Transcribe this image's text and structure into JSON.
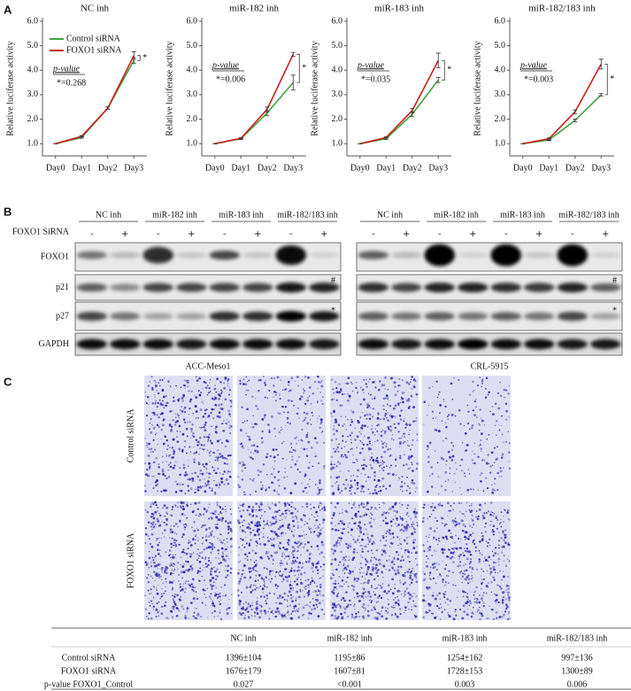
{
  "panel_labels": [
    "A",
    "B",
    "C"
  ],
  "chart_data": [
    {
      "type": "line",
      "title": "NC inh",
      "ylabel": "Relative luciferase activity",
      "categories": [
        "Day0",
        "Day1",
        "Day2",
        "Day3"
      ],
      "series": [
        {
          "name": "Control siRNA",
          "color": "#3da33d",
          "values": [
            1.0,
            1.25,
            2.45,
            4.4
          ],
          "errors": [
            0.0,
            0.03,
            0.05,
            0.12
          ]
        },
        {
          "name": "FOXO1 siRNA",
          "color": "#cc1f1f",
          "values": [
            1.0,
            1.3,
            2.45,
            4.6
          ],
          "errors": [
            0.0,
            0.03,
            0.05,
            0.15
          ]
        }
      ],
      "ylim": [
        0.5,
        6.0
      ],
      "yticks": [
        {
          "value": 1,
          "label": "1.0"
        },
        {
          "value": 2,
          "label": "2.0"
        },
        {
          "value": 3,
          "label": "3.0"
        },
        {
          "value": 4,
          "label": "4.0"
        },
        {
          "value": 5,
          "label": "5.0"
        },
        {
          "value": 6,
          "label": "6.0"
        }
      ],
      "legend": true,
      "pvalue_label": "p-value",
      "pvalue_text": "*=0.268",
      "star": "*"
    },
    {
      "type": "line",
      "title": "miR-182 inh",
      "ylabel": "Relative luciferase activity",
      "categories": [
        "Day0",
        "Day1",
        "Day2",
        "Day3"
      ],
      "series": [
        {
          "name": "Control siRNA",
          "color": "#3da33d",
          "values": [
            1.0,
            1.2,
            2.25,
            3.5
          ],
          "errors": [
            0.0,
            0.03,
            0.1,
            0.3
          ]
        },
        {
          "name": "FOXO1 siRNA",
          "color": "#cc1f1f",
          "values": [
            1.0,
            1.22,
            2.4,
            4.65
          ],
          "errors": [
            0.0,
            0.03,
            0.1,
            0.08
          ]
        }
      ],
      "ylim": [
        0.5,
        6.0
      ],
      "yticks": [
        {
          "value": 1,
          "label": "1.0"
        },
        {
          "value": 2,
          "label": "2.0"
        },
        {
          "value": 3,
          "label": "3.0"
        },
        {
          "value": 4,
          "label": "4.0"
        },
        {
          "value": 5,
          "label": "5.0"
        },
        {
          "value": 6,
          "label": "6.0"
        }
      ],
      "legend": false,
      "pvalue_label": "p-value",
      "pvalue_text": "*=0.006",
      "star": "*"
    },
    {
      "type": "line",
      "title": "miR-183 inh",
      "ylabel": "Relative luciferase activity",
      "categories": [
        "Day0",
        "Day1",
        "Day2",
        "Day3"
      ],
      "series": [
        {
          "name": "Control siRNA",
          "color": "#3da33d",
          "values": [
            1.0,
            1.2,
            2.2,
            3.6
          ],
          "errors": [
            0.0,
            0.03,
            0.1,
            0.1
          ]
        },
        {
          "name": "FOXO1 siRNA",
          "color": "#cc1f1f",
          "values": [
            1.0,
            1.25,
            2.35,
            4.4
          ],
          "errors": [
            0.0,
            0.03,
            0.08,
            0.3
          ]
        }
      ],
      "ylim": [
        0.5,
        6.0
      ],
      "yticks": [
        {
          "value": 1,
          "label": "1.0"
        },
        {
          "value": 2,
          "label": "2.0"
        },
        {
          "value": 3,
          "label": "3.0"
        },
        {
          "value": 4,
          "label": "4.0"
        },
        {
          "value": 5,
          "label": "5.0"
        },
        {
          "value": 6,
          "label": "6.0"
        }
      ],
      "legend": false,
      "pvalue_label": "p-value",
      "pvalue_text": "*=0.035",
      "star": "*"
    },
    {
      "type": "line",
      "title": "miR-182/183 inh",
      "ylabel": "Relative luciferase activity",
      "categories": [
        "Day0",
        "Day1",
        "Day2",
        "Day3"
      ],
      "series": [
        {
          "name": "Control siRNA",
          "color": "#3da33d",
          "values": [
            1.0,
            1.15,
            1.95,
            3.0
          ],
          "errors": [
            0.0,
            0.03,
            0.05,
            0.05
          ]
        },
        {
          "name": "FOXO1 siRNA",
          "color": "#cc1f1f",
          "values": [
            1.0,
            1.2,
            2.3,
            4.25
          ],
          "errors": [
            0.0,
            0.05,
            0.08,
            0.2
          ]
        }
      ],
      "ylim": [
        0.5,
        6.0
      ],
      "yticks": [
        {
          "value": 1,
          "label": "1.0"
        },
        {
          "value": 2,
          "label": "2.0"
        },
        {
          "value": 3,
          "label": "3.0"
        },
        {
          "value": 4,
          "label": "4.0"
        },
        {
          "value": 5,
          "label": "5.0"
        },
        {
          "value": 6,
          "label": "6.0"
        }
      ],
      "legend": false,
      "pvalue_label": "p-value",
      "pvalue_text": "*=0.003",
      "star": "*"
    }
  ],
  "blot": {
    "sirna_label": "FOXO1 SiRNA",
    "signs": [
      "-",
      "+"
    ],
    "groups": [
      "NC inh",
      "miR-182 inh",
      "miR-183 inh",
      "miR-182/183 inh"
    ],
    "cell_lines": [
      "ACC-Meso1",
      "CRL-5915"
    ],
    "rows": [
      "FOXO1",
      "p21",
      "p27",
      "GAPDH"
    ],
    "row_markers": [
      "#",
      "*"
    ]
  },
  "images": {
    "row_labels": [
      "Control siRNA",
      "FOXO1 siRNA"
    ]
  },
  "table": {
    "columns": [
      "NC inh",
      "miR-182 inh",
      "miR-183 inh",
      "miR-182/183 inh"
    ],
    "rows": [
      {
        "label": "Control  siRNA",
        "cells": [
          "1396±104",
          "1195±86",
          "1254±162",
          "997±136"
        ]
      },
      {
        "label": "FOXO1 siRNA",
        "cells": [
          "1676±179",
          "1607±81",
          "1728±153",
          "1300±89"
        ]
      },
      {
        "label": "p-value FOXO1_Control",
        "cells": [
          "0.027",
          "<0.001",
          "0.003",
          "0.006"
        ]
      }
    ]
  }
}
